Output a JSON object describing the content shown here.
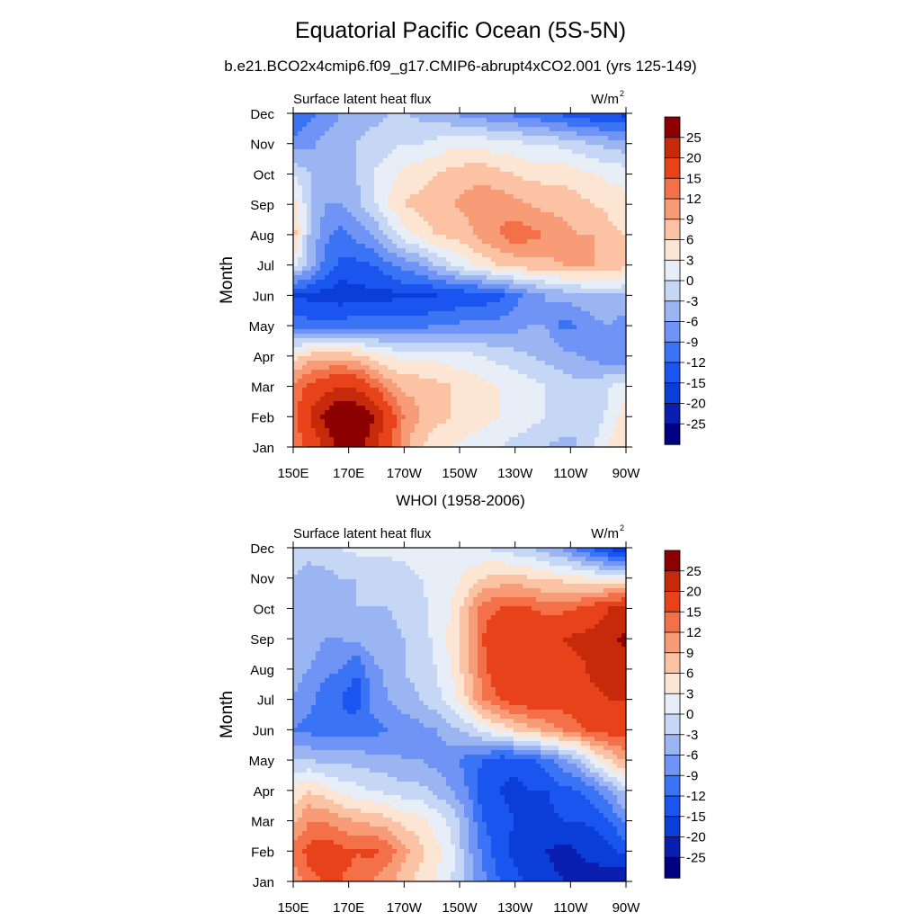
{
  "title": "Equatorial Pacific Ocean (5S-5N)",
  "subtitle": "b.e21.BCO2x4cmip6.f09_g17.CMIP6-abrupt4xCO2.001 (yrs 125-149)",
  "chart_data": {
    "type": "heatmap",
    "x_ticks": [
      "150E",
      "170E",
      "170W",
      "150W",
      "130W",
      "110W",
      "90W"
    ],
    "x_lon": [
      150,
      170,
      190,
      210,
      230,
      250,
      270
    ],
    "y_ticks": [
      "Jan",
      "Feb",
      "Mar",
      "Apr",
      "May",
      "Jun",
      "Jul",
      "Aug",
      "Sep",
      "Oct",
      "Nov",
      "Dec"
    ],
    "ylabel": "Month",
    "colorbar": {
      "labels": [
        "25",
        "20",
        "15",
        "12",
        "9",
        "6",
        "3",
        "0",
        "-3",
        "-6",
        "-9",
        "-12",
        "-15",
        "-20",
        "-25"
      ],
      "levels": [
        -25,
        -20,
        -15,
        -12,
        -9,
        -6,
        -3,
        0,
        3,
        6,
        9,
        12,
        15,
        20,
        25
      ],
      "colors_low_to_high": [
        "#000080",
        "#0a1fb0",
        "#0b3ed8",
        "#1a55f0",
        "#3b73f5",
        "#6f94f5",
        "#9bb5f3",
        "#c6d6f5",
        "#e8eef8",
        "#fde5d4",
        "#fbc3a4",
        "#f89c78",
        "#f47048",
        "#e8421b",
        "#c62a0a",
        "#8b0000"
      ]
    },
    "panels": [
      {
        "title": "",
        "left_label": "Surface latent heat flux",
        "right_label": "W/m",
        "unit_superscript": "2",
        "values": [
          [
            12,
            16,
            20,
            27,
            28,
            22,
            16,
            10,
            6,
            4,
            3,
            2,
            1,
            0,
            -1,
            -2,
            -3,
            -4,
            -3,
            0,
            4,
            5
          ],
          [
            14,
            20,
            27,
            31,
            30,
            26,
            18,
            12,
            9,
            7,
            6,
            5,
            4,
            3,
            2,
            1,
            0,
            -1,
            -3,
            -2,
            1,
            5
          ],
          [
            12,
            16,
            18,
            20,
            19,
            15,
            11,
            8,
            8,
            7,
            6,
            5,
            4,
            3,
            2,
            1,
            0,
            -1,
            -2,
            -2,
            0,
            2
          ],
          [
            5,
            7,
            8,
            8,
            7,
            5,
            3,
            2,
            2,
            2,
            1,
            1,
            0,
            -1,
            -2,
            -3,
            -4,
            -5,
            -6,
            -7,
            -8,
            -9
          ],
          [
            -10,
            -11,
            -11,
            -11,
            -10,
            -10,
            -10,
            -10,
            -10,
            -9,
            -9,
            -8,
            -8,
            -8,
            -7,
            -6,
            -6,
            -10,
            -9,
            -7,
            -6,
            -8
          ],
          [
            -15,
            -16,
            -16,
            -17,
            -16,
            -16,
            -16,
            -15,
            -16,
            -15,
            -15,
            -14,
            -14,
            -13,
            -10,
            -8,
            -6,
            -5,
            -4,
            -3,
            -3,
            -3
          ],
          [
            1,
            -4,
            -10,
            -13,
            -13,
            -12,
            -10,
            -8,
            -6,
            -3,
            0,
            2,
            4,
            6,
            7,
            8,
            8,
            9,
            9,
            9,
            8,
            7
          ],
          [
            8,
            -3,
            -8,
            -10,
            -8,
            -6,
            -2,
            2,
            4,
            6,
            7,
            8,
            11,
            12,
            14,
            13,
            12,
            10,
            9,
            9,
            7,
            6
          ],
          [
            5,
            -2,
            -6,
            -6,
            -4,
            -1,
            3,
            6,
            7,
            8,
            9,
            10,
            11,
            11,
            10,
            9,
            8,
            8,
            7,
            6,
            5,
            4
          ],
          [
            0,
            -3,
            -4,
            -4,
            -3,
            0,
            2,
            4,
            5,
            6,
            7,
            8,
            8,
            7,
            6,
            5,
            5,
            5,
            4,
            3,
            2,
            2
          ],
          [
            -8,
            -7,
            -5,
            -4,
            -3,
            -2,
            -1,
            0,
            0,
            1,
            2,
            2,
            2,
            1,
            1,
            0,
            0,
            -1,
            -2,
            -3,
            -4,
            -5
          ],
          [
            -12,
            -10,
            -8,
            -6,
            -5,
            -4,
            -3,
            -3,
            -4,
            -5,
            -6,
            -7,
            -8,
            -9,
            -10,
            -11,
            -12,
            -13,
            -14,
            -15,
            -15,
            -16
          ]
        ]
      },
      {
        "title": "WHOI (1958-2006)",
        "left_label": "Surface latent heat flux",
        "right_label": "W/m",
        "unit_superscript": "2",
        "values": [
          [
            10,
            14,
            15,
            15,
            14,
            12,
            10,
            7,
            5,
            3,
            0,
            -4,
            -8,
            -12,
            -14,
            -16,
            -18,
            -20,
            -22,
            -23,
            -24,
            -26
          ],
          [
            13,
            16,
            17,
            16,
            15,
            16,
            14,
            10,
            7,
            4,
            1,
            -5,
            -10,
            -14,
            -16,
            -17,
            -20,
            -22,
            -20,
            -18,
            -16,
            -14
          ],
          [
            8,
            12,
            12,
            10,
            9,
            8,
            7,
            5,
            4,
            2,
            -1,
            -6,
            -12,
            -14,
            -15,
            -16,
            -16,
            -15,
            -15,
            -14,
            -12,
            -8
          ],
          [
            4,
            6,
            4,
            2,
            1,
            0,
            -1,
            -2,
            -2,
            -4,
            -6,
            -9,
            -14,
            -15,
            -16,
            -15,
            -15,
            -13,
            -12,
            -10,
            -6,
            -2
          ],
          [
            -3,
            -3,
            -4,
            -4,
            -4,
            -5,
            -5,
            -6,
            -6,
            -7,
            -8,
            -10,
            -12,
            -14,
            -14,
            -13,
            -10,
            -7,
            -4,
            2,
            6,
            10
          ],
          [
            -9,
            -10,
            -11,
            -11,
            -10,
            -10,
            -9,
            -8,
            -7,
            -6,
            -4,
            -2,
            1,
            4,
            6,
            8,
            10,
            12,
            14,
            16,
            17,
            17
          ],
          [
            -6,
            -8,
            -11,
            -12,
            -14,
            -8,
            -6,
            -4,
            -3,
            -1,
            2,
            6,
            12,
            15,
            17,
            18,
            18,
            17,
            18,
            19,
            20,
            20
          ],
          [
            -5,
            -6,
            -8,
            -9,
            -12,
            -7,
            -5,
            -3,
            -2,
            0,
            3,
            8,
            14,
            18,
            19,
            19,
            18,
            18,
            19,
            21,
            22,
            23
          ],
          [
            -3,
            -4,
            -6,
            -6,
            -5,
            -4,
            -4,
            -3,
            -2,
            1,
            4,
            9,
            15,
            18,
            19,
            19,
            19,
            20,
            21,
            22,
            24,
            26
          ],
          [
            -3,
            -3,
            -4,
            -4,
            -3,
            -3,
            -3,
            -2,
            -1,
            1,
            3,
            8,
            14,
            15,
            16,
            15,
            14,
            14,
            15,
            17,
            20,
            21
          ],
          [
            -3,
            -4,
            -4,
            -3,
            -3,
            -2,
            -2,
            -1,
            0,
            1,
            2,
            4,
            6,
            7,
            7,
            6,
            5,
            5,
            4,
            3,
            2,
            1
          ],
          [
            -2,
            -2,
            -1,
            0,
            1,
            1,
            1,
            1,
            1,
            1,
            1,
            1,
            0,
            -1,
            -2,
            -3,
            -5,
            -7,
            -10,
            -13,
            -16,
            -20
          ]
        ]
      }
    ]
  }
}
